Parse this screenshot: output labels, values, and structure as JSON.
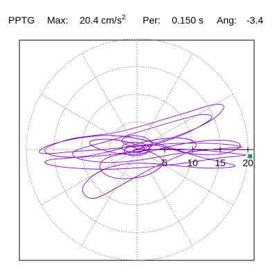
{
  "header": {
    "station": "PPTG",
    "max_label": "Max:",
    "max_value": "20.4",
    "max_unit_base": "cm/s",
    "max_unit_exp": "2",
    "period_label": "Per:",
    "period_value": "0.150 s",
    "angle_label": "Ang:",
    "angle_value": "-3.4"
  },
  "chart_data": {
    "type": "scatter",
    "title": "PPTG  Max: 20.4 cm/s2  Per: 0.150 s  Ang: -3.4",
    "coordinate_system": "polar",
    "radial_ticks": [
      5,
      10,
      15,
      20
    ],
    "radial_tick_labels": [
      "5",
      "10",
      "15",
      "20"
    ],
    "rlim": [
      0,
      20
    ],
    "rings": [
      5,
      10,
      15,
      20
    ],
    "spoke_angles_deg": [
      0,
      30,
      60,
      90,
      120,
      150,
      180,
      210,
      240,
      270,
      300,
      330
    ],
    "grid": true,
    "trace_color": "#8a00d4",
    "marker_color": "#1a9a7a",
    "peak_marker": {
      "x": 20.4,
      "y": -1.2
    },
    "series": [
      {
        "path_points": [
          [
            0,
            0
          ],
          [
            2,
            1
          ],
          [
            5,
            0.5
          ],
          [
            8,
            -0.5
          ],
          [
            12,
            -1
          ],
          [
            16,
            -0.8
          ],
          [
            19,
            0.5
          ],
          [
            18,
            1.5
          ],
          [
            14,
            1.8
          ],
          [
            9,
            1.2
          ],
          [
            5,
            0.4
          ],
          [
            2,
            -0.5
          ],
          [
            -1,
            -1
          ],
          [
            -5,
            -0.5
          ],
          [
            -8,
            0.5
          ],
          [
            -9,
            1.5
          ],
          [
            -6,
            2
          ],
          [
            -2,
            1.5
          ],
          [
            1,
            0.5
          ],
          [
            6,
            2
          ],
          [
            10,
            3.5
          ],
          [
            13,
            5
          ],
          [
            15,
            6.5
          ],
          [
            16,
            8
          ],
          [
            14,
            8.3
          ],
          [
            10,
            7
          ],
          [
            5,
            5.5
          ],
          [
            0,
            4
          ],
          [
            -4,
            3
          ],
          [
            -8,
            2.5
          ],
          [
            -12,
            2
          ],
          [
            -15,
            1
          ],
          [
            -17,
            0
          ],
          [
            -16,
            -1
          ],
          [
            -12,
            -1.5
          ],
          [
            -7,
            -1.2
          ],
          [
            -2,
            -0.6
          ],
          [
            3,
            0.8
          ],
          [
            8,
            2.5
          ],
          [
            12,
            4.5
          ],
          [
            14,
            6
          ],
          [
            12,
            6.5
          ],
          [
            8,
            5.5
          ],
          [
            3,
            4
          ],
          [
            -2,
            2.5
          ],
          [
            -6,
            1.3
          ],
          [
            -10,
            0.3
          ],
          [
            -12,
            -0.6
          ],
          [
            -11,
            -1.6
          ],
          [
            -8,
            -2.2
          ],
          [
            -4,
            -2.4
          ],
          [
            0,
            -2
          ],
          [
            4,
            -1.3
          ],
          [
            8,
            -0.6
          ],
          [
            13,
            0
          ],
          [
            17,
            0.3
          ],
          [
            19.5,
            0.4
          ],
          [
            17,
            0.9
          ],
          [
            12,
            1.2
          ],
          [
            6,
            1.1
          ],
          [
            0,
            0.6
          ],
          [
            -6,
            0
          ],
          [
            -12,
            -0.4
          ],
          [
            -16,
            -0.8
          ],
          [
            -18,
            -0.6
          ],
          [
            -17,
            0.4
          ],
          [
            -14,
            1.4
          ],
          [
            -10,
            2.2
          ],
          [
            -6,
            2.6
          ],
          [
            -2,
            2.4
          ],
          [
            2,
            1.6
          ],
          [
            6,
            0.4
          ],
          [
            10,
            -1
          ],
          [
            14,
            -2
          ],
          [
            17,
            -2.6
          ],
          [
            18,
            -3
          ],
          [
            16,
            -3.3
          ],
          [
            12,
            -3.4
          ],
          [
            8,
            -3
          ],
          [
            4,
            -2.6
          ],
          [
            0,
            -2.4
          ],
          [
            -4,
            -2.8
          ],
          [
            -7,
            -4
          ],
          [
            -9,
            -5.5
          ],
          [
            -10,
            -7
          ],
          [
            -9.5,
            -8.4
          ],
          [
            -8,
            -9
          ],
          [
            -6,
            -8.2
          ],
          [
            -3,
            -6.5
          ],
          [
            0,
            -4.8
          ],
          [
            3,
            -3.2
          ],
          [
            6,
            -1.8
          ],
          [
            9,
            -0.6
          ],
          [
            11,
            0.6
          ],
          [
            10,
            1.8
          ],
          [
            7,
            2.2
          ],
          [
            3,
            1.8
          ],
          [
            -1,
            0.8
          ],
          [
            -5,
            -0.4
          ],
          [
            -9,
            -1.2
          ],
          [
            -13,
            -1.6
          ],
          [
            -16,
            -1.8
          ],
          [
            -17,
            -2.4
          ],
          [
            -15,
            -3
          ],
          [
            -11,
            -3.4
          ],
          [
            -6,
            -3.6
          ],
          [
            -1,
            -3.4
          ],
          [
            4,
            -3
          ],
          [
            9,
            -2.4
          ],
          [
            14,
            -1.6
          ],
          [
            18,
            -1.2
          ],
          [
            20,
            -1
          ],
          [
            18.5,
            -0.8
          ],
          [
            15,
            -0.4
          ],
          [
            10,
            0
          ],
          [
            5,
            0.2
          ],
          [
            1,
            -0.2
          ],
          [
            -3,
            -0.8
          ],
          [
            -6,
            -1.6
          ],
          [
            -7,
            -3
          ],
          [
            -6,
            -4.6
          ],
          [
            -3,
            -5.4
          ],
          [
            1,
            -5
          ],
          [
            4,
            -3.6
          ],
          [
            5,
            -2
          ],
          [
            3,
            -0.6
          ],
          [
            0,
            0.2
          ],
          [
            -2,
            0.8
          ],
          [
            -3,
            1.6
          ],
          [
            -2,
            2.4
          ],
          [
            0,
            2.6
          ],
          [
            2,
            2
          ],
          [
            3,
            1
          ],
          [
            2,
            0
          ],
          [
            0,
            -0.6
          ],
          [
            -2,
            -0.4
          ],
          [
            -3,
            0.4
          ],
          [
            -2,
            1.2
          ],
          [
            0,
            1.4
          ],
          [
            2,
            0.8
          ],
          [
            2.5,
            -0.2
          ],
          [
            1,
            -1
          ],
          [
            -1,
            -1.2
          ],
          [
            -2.5,
            -0.6
          ],
          [
            -2,
            0.4
          ],
          [
            0,
            0.8
          ],
          [
            1.5,
            0.4
          ],
          [
            1,
            -0.4
          ],
          [
            0,
            -0.6
          ],
          [
            -1,
            -0.2
          ],
          [
            0,
            0.2
          ],
          [
            0.5,
            0
          ],
          [
            0,
            0
          ]
        ]
      }
    ]
  }
}
